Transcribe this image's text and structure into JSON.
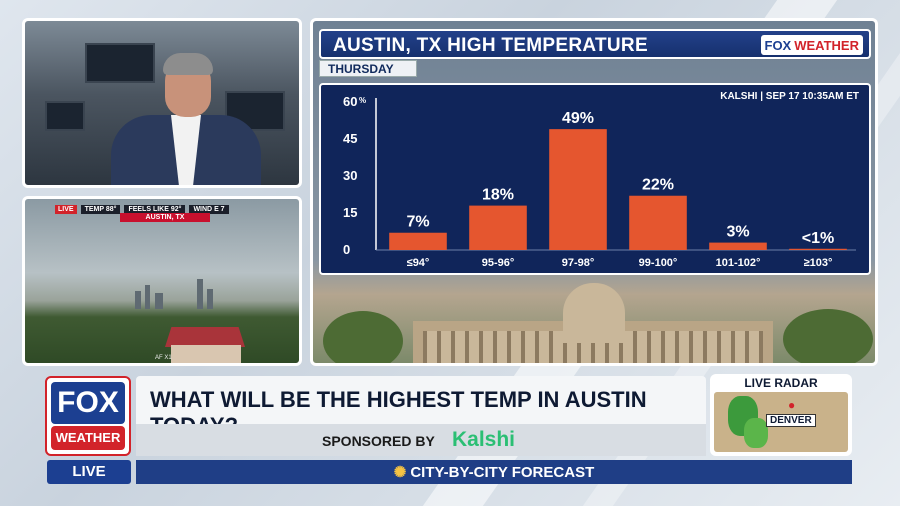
{
  "studio": {},
  "city_cam": {
    "live_label": "LIVE",
    "temp_label": "TEMP",
    "temp_value": "88°",
    "feels_label": "FEELS LIKE",
    "feels_value": "92°",
    "wind_label": "WIND",
    "wind_value": "E 7",
    "location": "AUSTIN, TX",
    "watermark": "AF X1"
  },
  "graphic": {
    "title": "AUSTIN, TX HIGH TEMPERATURE",
    "logo_fox": "FOX",
    "logo_weather": "WEATHER",
    "day": "THURSDAY",
    "source": "KALSHI | SEP 17 10:35AM ET"
  },
  "chart_data": {
    "type": "bar",
    "categories": [
      "≤94°",
      "95-96°",
      "97-98°",
      "99-100°",
      "101-102°",
      "≥103°"
    ],
    "values": [
      7,
      18,
      49,
      22,
      3,
      0.5
    ],
    "value_labels": [
      "7%",
      "18%",
      "49%",
      "22%",
      "3%",
      "<1%"
    ],
    "y_ticks": [
      "0",
      "15",
      "30",
      "45",
      "60"
    ],
    "y_unit": "%",
    "ylim": [
      0,
      60
    ],
    "bar_color": "#e5562f",
    "grid": false
  },
  "lower_third": {
    "badge_fox": "FOX",
    "badge_weather": "WEATHER",
    "question": "WHAT WILL BE THE HIGHEST TEMP IN AUSTIN TODAY?",
    "sponsored_label": "SPONSORED BY",
    "sponsor": "Kalshi",
    "radar_title": "LIVE RADAR",
    "radar_city": "DENVER",
    "live": "LIVE",
    "ticker": "CITY-BY-CITY FORECAST"
  },
  "colors": {
    "fox_blue": "#1c3f91",
    "fox_red": "#d2232a",
    "chart_bg": "#10255a",
    "kalshi_green": "#2bbf74"
  }
}
